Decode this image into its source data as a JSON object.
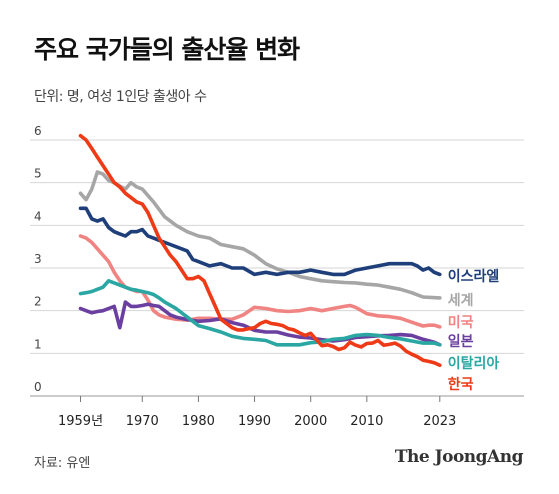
{
  "title": "주요 국가들의 출산율 변화",
  "subtitle": "단위: 명, 여성 1인당 출생아 수",
  "source": "자료: 유엔",
  "brand": "The JoongAng",
  "chart_data": {
    "type": "line",
    "x_tick_labels": [
      "1959년",
      "1970",
      "1980",
      "1990",
      "2000",
      "2010",
      "2023"
    ],
    "x_tick_values": [
      1959,
      1970,
      1980,
      1990,
      2000,
      2010,
      2023
    ],
    "xlim": [
      1950,
      2038
    ],
    "ylim": [
      0,
      6.5
    ],
    "y_ticks": [
      0,
      1,
      2,
      3,
      4,
      5,
      6
    ],
    "grid": true,
    "legend": "inline-right",
    "series": [
      {
        "name": "세계",
        "color": "#a6a6a6",
        "x": [
          1959,
          1960,
          1961,
          1962,
          1963,
          1964,
          1965,
          1966,
          1967,
          1968,
          1969,
          1970,
          1972,
          1974,
          1976,
          1978,
          1980,
          1982,
          1984,
          1986,
          1988,
          1990,
          1992,
          1994,
          1996,
          1998,
          2000,
          2002,
          2004,
          2006,
          2008,
          2010,
          2012,
          2014,
          2016,
          2018,
          2020,
          2023
        ],
        "y": [
          4.75,
          4.6,
          4.85,
          5.25,
          5.2,
          5.05,
          5.0,
          4.92,
          4.85,
          5.0,
          4.9,
          4.85,
          4.55,
          4.2,
          4.0,
          3.85,
          3.75,
          3.7,
          3.55,
          3.5,
          3.45,
          3.3,
          3.1,
          2.98,
          2.9,
          2.8,
          2.75,
          2.7,
          2.68,
          2.66,
          2.65,
          2.62,
          2.6,
          2.55,
          2.5,
          2.42,
          2.32,
          2.3
        ]
      },
      {
        "name": "이스라엘",
        "color": "#1f3f7a",
        "x": [
          1959,
          1960,
          1961,
          1962,
          1963,
          1964,
          1965,
          1966,
          1967,
          1968,
          1969,
          1970,
          1971,
          1972,
          1973,
          1974,
          1975,
          1976,
          1977,
          1978,
          1979,
          1980,
          1982,
          1984,
          1986,
          1988,
          1990,
          1992,
          1994,
          1996,
          1998,
          2000,
          2002,
          2004,
          2006,
          2008,
          2010,
          2012,
          2014,
          2016,
          2018,
          2019,
          2020,
          2021,
          2022,
          2023
        ],
        "y": [
          4.4,
          4.4,
          4.15,
          4.1,
          4.15,
          3.95,
          3.85,
          3.8,
          3.75,
          3.85,
          3.85,
          3.9,
          3.75,
          3.7,
          3.65,
          3.6,
          3.55,
          3.5,
          3.45,
          3.4,
          3.2,
          3.15,
          3.05,
          3.1,
          3.0,
          3.0,
          2.85,
          2.9,
          2.85,
          2.9,
          2.9,
          2.95,
          2.9,
          2.85,
          2.85,
          2.95,
          3.0,
          3.05,
          3.1,
          3.1,
          3.1,
          3.05,
          2.95,
          3.0,
          2.9,
          2.85
        ]
      },
      {
        "name": "미국",
        "color": "#f08482",
        "x": [
          1959,
          1960,
          1961,
          1962,
          1963,
          1964,
          1965,
          1966,
          1967,
          1968,
          1969,
          1970,
          1971,
          1972,
          1973,
          1974,
          1976,
          1978,
          1980,
          1982,
          1984,
          1986,
          1988,
          1990,
          1992,
          1994,
          1996,
          1998,
          2000,
          2002,
          2004,
          2006,
          2007,
          2008,
          2010,
          2012,
          2014,
          2016,
          2018,
          2020,
          2021,
          2022,
          2023
        ],
        "y": [
          3.75,
          3.7,
          3.6,
          3.45,
          3.3,
          3.15,
          2.9,
          2.7,
          2.55,
          2.5,
          2.45,
          2.45,
          2.25,
          2.0,
          1.9,
          1.85,
          1.8,
          1.78,
          1.82,
          1.82,
          1.8,
          1.8,
          1.9,
          2.08,
          2.05,
          2.0,
          1.98,
          2.0,
          2.05,
          2.0,
          2.05,
          2.1,
          2.12,
          2.08,
          1.93,
          1.88,
          1.86,
          1.82,
          1.73,
          1.64,
          1.66,
          1.66,
          1.62
        ]
      },
      {
        "name": "일본",
        "color": "#6b3fa0",
        "x": [
          1959,
          1960,
          1961,
          1962,
          1963,
          1964,
          1965,
          1966,
          1967,
          1968,
          1969,
          1970,
          1971,
          1972,
          1973,
          1974,
          1975,
          1976,
          1978,
          1980,
          1982,
          1984,
          1986,
          1988,
          1990,
          1992,
          1994,
          1996,
          1998,
          2000,
          2002,
          2004,
          2006,
          2008,
          2010,
          2012,
          2014,
          2016,
          2018,
          2020,
          2022,
          2023
        ],
        "y": [
          2.05,
          2.0,
          1.95,
          1.98,
          2.0,
          2.05,
          2.1,
          1.6,
          2.2,
          2.1,
          2.1,
          2.12,
          2.15,
          2.12,
          2.1,
          2.0,
          1.9,
          1.85,
          1.79,
          1.75,
          1.77,
          1.81,
          1.72,
          1.66,
          1.54,
          1.5,
          1.5,
          1.43,
          1.38,
          1.36,
          1.32,
          1.29,
          1.32,
          1.37,
          1.39,
          1.41,
          1.42,
          1.44,
          1.42,
          1.33,
          1.26,
          1.2
        ]
      },
      {
        "name": "이탈리아",
        "color": "#2aa6a3",
        "x": [
          1959,
          1960,
          1961,
          1962,
          1963,
          1964,
          1965,
          1966,
          1967,
          1968,
          1969,
          1970,
          1971,
          1972,
          1973,
          1974,
          1976,
          1978,
          1980,
          1982,
          1984,
          1986,
          1988,
          1990,
          1992,
          1994,
          1996,
          1998,
          2000,
          2002,
          2004,
          2006,
          2008,
          2010,
          2012,
          2014,
          2016,
          2018,
          2020,
          2022,
          2023
        ],
        "y": [
          2.4,
          2.42,
          2.45,
          2.5,
          2.55,
          2.7,
          2.65,
          2.6,
          2.55,
          2.5,
          2.48,
          2.45,
          2.42,
          2.38,
          2.3,
          2.2,
          2.05,
          1.85,
          1.65,
          1.58,
          1.5,
          1.4,
          1.35,
          1.33,
          1.3,
          1.2,
          1.2,
          1.2,
          1.25,
          1.27,
          1.33,
          1.35,
          1.42,
          1.44,
          1.42,
          1.37,
          1.34,
          1.29,
          1.24,
          1.24,
          1.2
        ]
      },
      {
        "name": "한국",
        "color": "#ee3a16",
        "x": [
          1959,
          1960,
          1961,
          1962,
          1963,
          1964,
          1965,
          1966,
          1967,
          1968,
          1969,
          1970,
          1971,
          1972,
          1973,
          1974,
          1975,
          1976,
          1977,
          1978,
          1979,
          1980,
          1981,
          1982,
          1983,
          1984,
          1985,
          1986,
          1987,
          1988,
          1989,
          1990,
          1991,
          1992,
          1993,
          1994,
          1995,
          1996,
          1997,
          1998,
          1999,
          2000,
          2001,
          2002,
          2003,
          2004,
          2005,
          2006,
          2007,
          2008,
          2009,
          2010,
          2011,
          2012,
          2013,
          2014,
          2015,
          2016,
          2017,
          2018,
          2019,
          2020,
          2021,
          2022,
          2023
        ],
        "y": [
          6.1,
          6.0,
          5.8,
          5.6,
          5.4,
          5.2,
          5.0,
          4.9,
          4.75,
          4.65,
          4.55,
          4.5,
          4.3,
          4.0,
          3.7,
          3.5,
          3.3,
          3.15,
          2.95,
          2.75,
          2.75,
          2.8,
          2.7,
          2.4,
          2.1,
          1.8,
          1.7,
          1.6,
          1.55,
          1.55,
          1.58,
          1.6,
          1.7,
          1.75,
          1.7,
          1.68,
          1.65,
          1.58,
          1.55,
          1.48,
          1.42,
          1.47,
          1.32,
          1.18,
          1.2,
          1.16,
          1.09,
          1.13,
          1.26,
          1.19,
          1.15,
          1.23,
          1.24,
          1.3,
          1.19,
          1.21,
          1.24,
          1.17,
          1.05,
          0.98,
          0.92,
          0.84,
          0.81,
          0.78,
          0.72
        ]
      }
    ]
  }
}
